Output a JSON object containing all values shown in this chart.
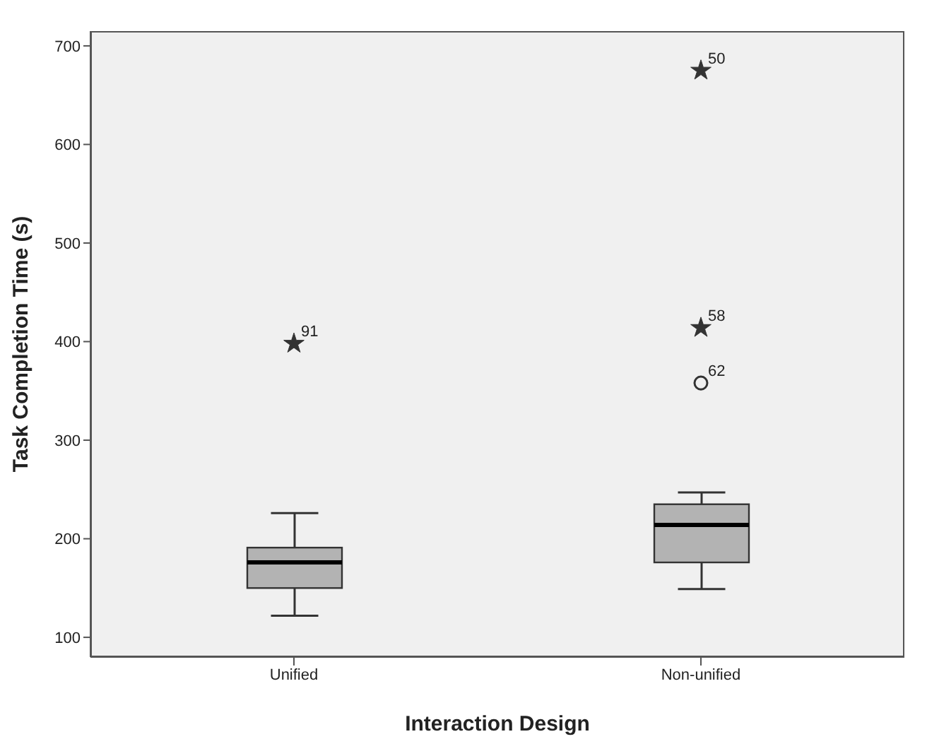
{
  "chart_data": {
    "type": "box",
    "xlabel": "Interaction Design",
    "ylabel": "Task Completion Time (s)",
    "categories": [
      "Unified",
      "Non-unified"
    ],
    "boxes": [
      {
        "low": 122,
        "q1": 150,
        "median": 176,
        "q3": 191,
        "high": 226
      },
      {
        "low": 149,
        "q1": 176,
        "median": 214,
        "q3": 235,
        "high": 247
      }
    ],
    "color": "#b3b3b3",
    "ylim": [
      80,
      715
    ],
    "yticks": [
      100,
      200,
      300,
      400,
      500,
      600,
      700
    ],
    "grid": false,
    "legend": false,
    "series": [
      {
        "type": "scatter",
        "marker": "star",
        "color": "#333333",
        "x": [
          "Unified",
          "Non-unified",
          "Non-unified"
        ],
        "values": [
          398,
          675,
          414
        ]
      },
      {
        "type": "scatter",
        "marker": "circle",
        "color": "#333333",
        "x": [
          "Non-unified"
        ],
        "values": [
          358
        ]
      }
    ],
    "annotations": [
      {
        "text": "91",
        "x": "Unified",
        "y": 398
      },
      {
        "text": "50",
        "x": "Non-unified",
        "y": 675
      },
      {
        "text": "58",
        "x": "Non-unified",
        "y": 414
      },
      {
        "text": "62",
        "x": "Non-unified",
        "y": 358
      }
    ]
  }
}
